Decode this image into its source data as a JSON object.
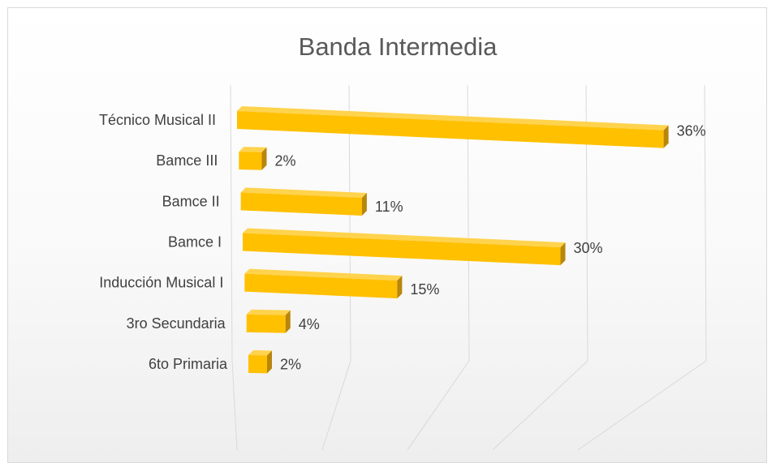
{
  "chart_data": {
    "type": "bar",
    "orientation": "horizontal",
    "title": "Banda Intermedia",
    "categories": [
      "Técnico Musical II",
      "Bamce III",
      "Bamce II",
      "Bamce I",
      "Inducción Musical I",
      "3ro Secundaria",
      "6to Primaria"
    ],
    "values": [
      36,
      2,
      11,
      30,
      15,
      4,
      2
    ],
    "data_labels": [
      "36%",
      "2%",
      "11%",
      "30%",
      "15%",
      "4%",
      "2%"
    ],
    "xlim": [
      0,
      40
    ],
    "grid": true,
    "legend": "none",
    "colors": {
      "bar_front": "#ffc000",
      "bar_top": "#ffd34d",
      "bar_side": "#b8860b"
    }
  }
}
